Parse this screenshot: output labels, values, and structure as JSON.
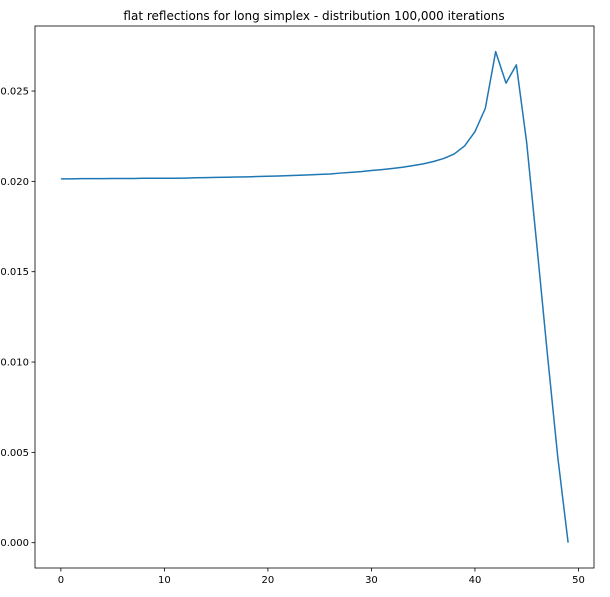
{
  "chart_data": {
    "type": "line",
    "title": "flat reflections for long simplex - distribution 100,000 iterations",
    "xlabel": "",
    "ylabel": "",
    "xlim": [
      -2.5,
      51.5
    ],
    "ylim": [
      -0.0014,
      0.0286
    ],
    "xticks": [
      0,
      10,
      20,
      30,
      40,
      50
    ],
    "xtick_labels": [
      "0",
      "10",
      "20",
      "30",
      "40",
      "50"
    ],
    "yticks": [
      0.0,
      0.005,
      0.01,
      0.015,
      0.02,
      0.025
    ],
    "ytick_labels": [
      "0.000",
      "0.005",
      "0.010",
      "0.015",
      "0.020",
      "0.025"
    ],
    "grid": false,
    "line_color": "#1f77b4",
    "series": [
      {
        "x": [
          0,
          1,
          2,
          3,
          4,
          5,
          6,
          7,
          8,
          9,
          10,
          11,
          12,
          13,
          14,
          15,
          16,
          17,
          18,
          19,
          20,
          21,
          22,
          23,
          24,
          25,
          26,
          27,
          28,
          29,
          30,
          31,
          32,
          33,
          34,
          35,
          36,
          37,
          38,
          39,
          40,
          41,
          42,
          43,
          44,
          45,
          46,
          47,
          48,
          49
        ],
        "values": [
          0.02014,
          0.02014,
          0.02015,
          0.02015,
          0.02015,
          0.02016,
          0.02016,
          0.02016,
          0.02017,
          0.02017,
          0.02017,
          0.02017,
          0.02018,
          0.0202,
          0.02021,
          0.02022,
          0.02023,
          0.02024,
          0.02025,
          0.02027,
          0.02028,
          0.0203,
          0.02032,
          0.02034,
          0.02036,
          0.02039,
          0.02041,
          0.02046,
          0.0205,
          0.02054,
          0.0206,
          0.02065,
          0.02071,
          0.02078,
          0.02087,
          0.02097,
          0.0211,
          0.02127,
          0.02152,
          0.02196,
          0.02275,
          0.02404,
          0.02718,
          0.02544,
          0.02645,
          0.02213,
          0.01634,
          0.01042,
          0.00474,
          0.0
        ]
      }
    ]
  }
}
